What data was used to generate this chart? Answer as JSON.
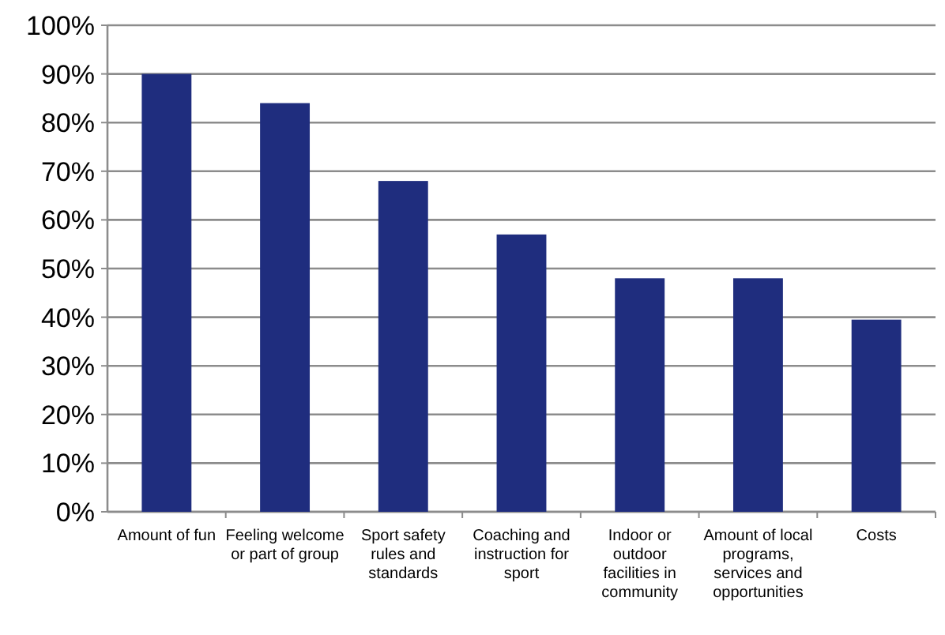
{
  "chart_data": {
    "type": "bar",
    "categories": [
      "Amount of fun",
      "Feeling welcome or part of group",
      "Sport safety rules and standards",
      "Coaching and instruction for sport",
      "Indoor or outdoor facilities in community",
      "Amount of local programs, services and opportunities",
      "Costs"
    ],
    "values": [
      90,
      84,
      68,
      57,
      48,
      48,
      39.5
    ],
    "color": "#1f2d7e",
    "ylim": [
      0,
      100
    ],
    "yticks": [
      {
        "value": 0,
        "label": "0%"
      },
      {
        "value": 10,
        "label": "10%"
      },
      {
        "value": 20,
        "label": "20%"
      },
      {
        "value": 30,
        "label": "30%"
      },
      {
        "value": 40,
        "label": "40%"
      },
      {
        "value": 50,
        "label": "50%"
      },
      {
        "value": 60,
        "label": "60%"
      },
      {
        "value": 70,
        "label": "70%"
      },
      {
        "value": 80,
        "label": "80%"
      },
      {
        "value": 90,
        "label": "90%"
      },
      {
        "value": 100,
        "label": "100%"
      }
    ],
    "grid": "y"
  }
}
